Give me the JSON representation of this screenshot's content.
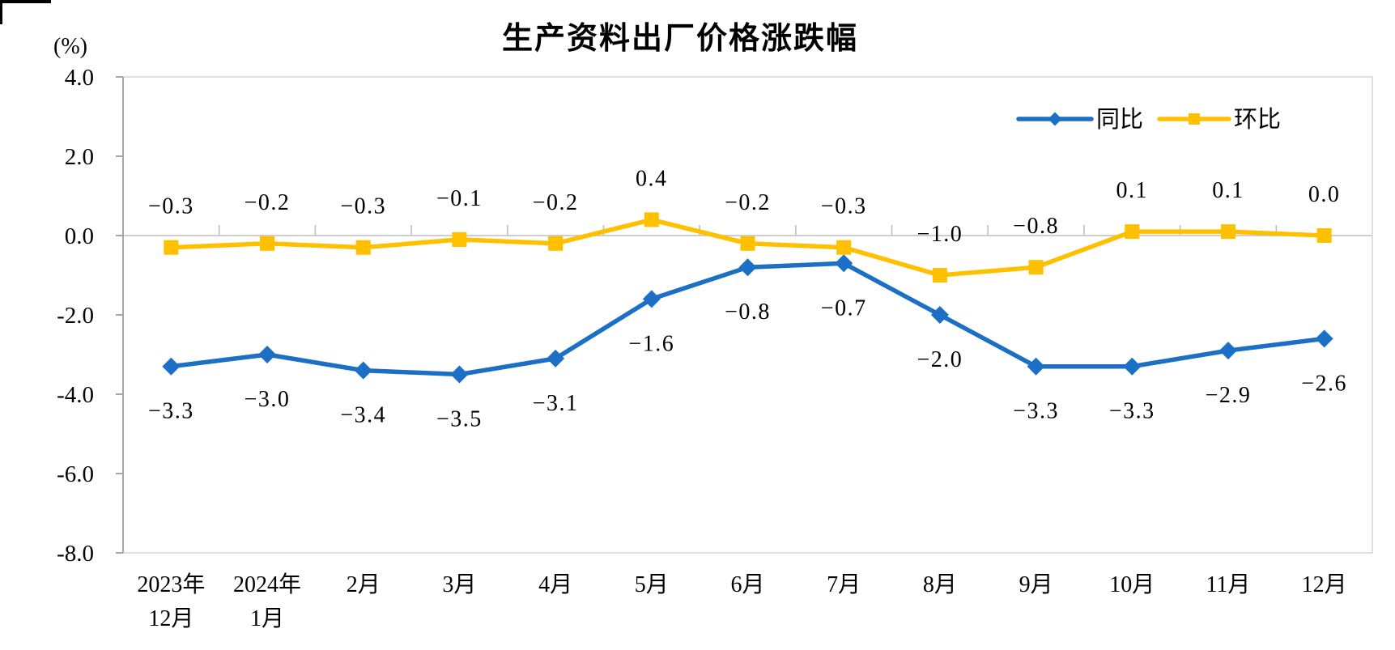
{
  "chart_data": {
    "type": "line",
    "title": "生产资料出厂价格涨跌幅",
    "y_unit": "(%)",
    "ylim": [
      -8.0,
      4.0
    ],
    "grid": "zero-baseline-only",
    "legend_position": "top-right-inside",
    "y_ticks": [
      {
        "value": 4.0,
        "label": "4.0"
      },
      {
        "value": 2.0,
        "label": "2.0"
      },
      {
        "value": 0.0,
        "label": "0.0"
      },
      {
        "value": -2.0,
        "label": "-2.0"
      },
      {
        "value": -4.0,
        "label": "-4.0"
      },
      {
        "value": -6.0,
        "label": "-6.0"
      },
      {
        "value": -8.0,
        "label": "-8.0"
      }
    ],
    "categories": [
      "2023年12月",
      "2024年1月",
      "2月",
      "3月",
      "4月",
      "5月",
      "6月",
      "7月",
      "8月",
      "9月",
      "10月",
      "11月",
      "12月"
    ],
    "category_display_lines": [
      [
        "2023年",
        "12月"
      ],
      [
        "2024年",
        "1月"
      ],
      [
        "2月"
      ],
      [
        "3月"
      ],
      [
        "4月"
      ],
      [
        "5月"
      ],
      [
        "6月"
      ],
      [
        "7月"
      ],
      [
        "8月"
      ],
      [
        "9月"
      ],
      [
        "10月"
      ],
      [
        "11月"
      ],
      [
        "12月"
      ]
    ],
    "series": [
      {
        "name": "同比",
        "color": "#1B6FC4",
        "marker": "diamond",
        "label_position": "below",
        "values": [
          -3.3,
          -3.0,
          -3.4,
          -3.5,
          -3.1,
          -1.6,
          -0.8,
          -0.7,
          -2.0,
          -3.3,
          -3.3,
          -2.9,
          -2.6
        ],
        "labels": [
          "−3.3",
          "−3.0",
          "−3.4",
          "−3.5",
          "−3.1",
          "−1.6",
          "−0.8",
          "−0.7",
          "−2.0",
          "−3.3",
          "−3.3",
          "−2.9",
          "−2.6"
        ]
      },
      {
        "name": "环比",
        "color": "#FFC000",
        "marker": "square",
        "label_position": "above",
        "values": [
          -0.3,
          -0.2,
          -0.3,
          -0.1,
          -0.2,
          0.4,
          -0.2,
          -0.3,
          -1.0,
          -0.8,
          0.1,
          0.1,
          0.0
        ],
        "labels": [
          "−0.3",
          "−0.2",
          "−0.3",
          "−0.1",
          "−0.2",
          "0.4",
          "−0.2",
          "−0.3",
          "−1.0",
          "−0.8",
          "0.1",
          "0.1",
          "0.0"
        ]
      }
    ]
  }
}
